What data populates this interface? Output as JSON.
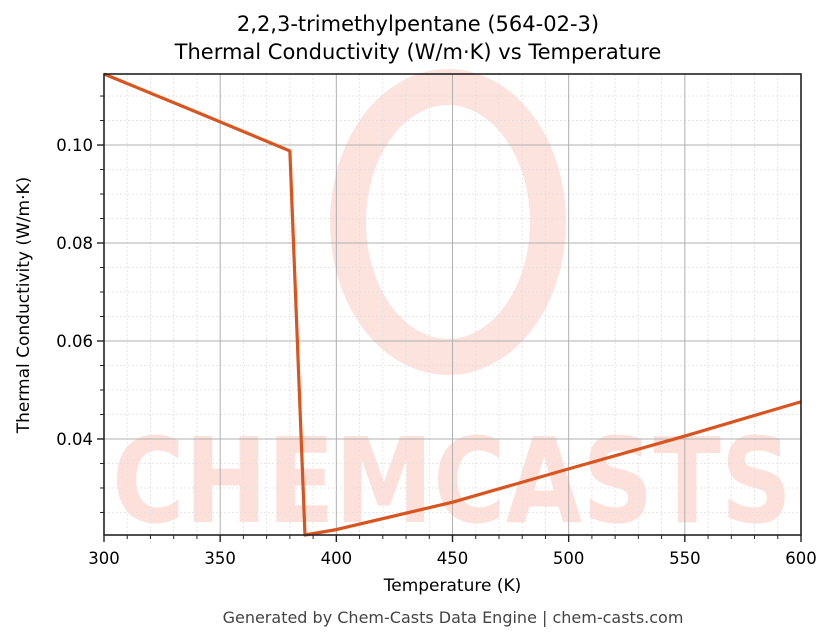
{
  "title": {
    "line1": "2,2,3-trimethylpentane (564-02-3)",
    "line2": "Thermal Conductivity (W/m·K) vs Temperature"
  },
  "axes": {
    "xlabel": "Temperature (K)",
    "ylabel": "Thermal Conductivity (W/m·K)"
  },
  "footer": "Generated by Chem-Casts Data Engine | chem-casts.com",
  "watermark": "CHEMCASTS",
  "colors": {
    "line": "#d9541e",
    "watermark": "#fde0da",
    "grid_major": "#b0b0b0",
    "grid_minor": "#e0e0e0"
  },
  "chart_data": {
    "type": "line",
    "title": "2,2,3-trimethylpentane (564-02-3) Thermal Conductivity (W/m·K) vs Temperature",
    "xlabel": "Temperature (K)",
    "ylabel": "Thermal Conductivity (W/m·K)",
    "xlim": [
      300,
      600
    ],
    "ylim": [
      0.0204,
      0.1145
    ],
    "xticks": [
      300,
      350,
      400,
      450,
      500,
      550,
      600
    ],
    "yticks": [
      0.04,
      0.06,
      0.08,
      0.1
    ],
    "ytick_labels": [
      "0.04",
      "0.06",
      "0.08",
      "0.10"
    ],
    "grid": true,
    "legend": null,
    "series": [
      {
        "name": "Thermal Conductivity",
        "x": [
          300,
          340,
          380,
          386.5,
          400,
          450,
          500,
          550,
          600
        ],
        "y": [
          0.1145,
          0.1067,
          0.0988,
          0.0204,
          0.0215,
          0.0271,
          0.0339,
          0.0406,
          0.0476
        ]
      }
    ]
  }
}
